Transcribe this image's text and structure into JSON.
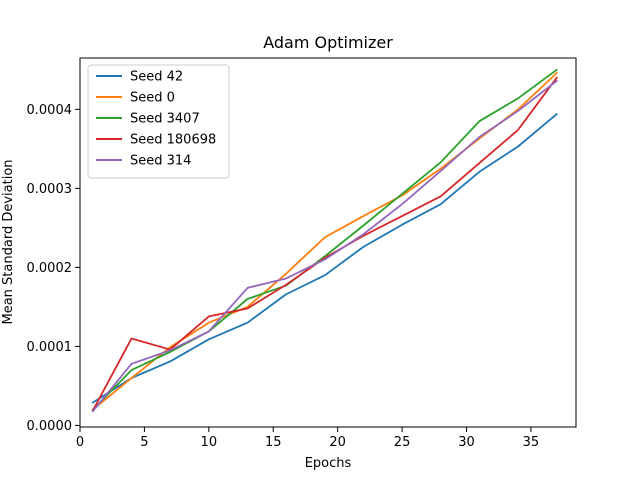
{
  "chart_data": {
    "type": "line",
    "title": "Adam Optimizer",
    "xlabel": "Epochs",
    "ylabel": "Mean Standard Deviation",
    "xlim": [
      0,
      38.5
    ],
    "ylim": [
      -2e-06,
      0.000465
    ],
    "x_ticks": [
      0,
      5,
      10,
      15,
      20,
      25,
      30,
      35
    ],
    "x_tick_labels": [
      "0",
      "5",
      "10",
      "15",
      "20",
      "25",
      "30",
      "35"
    ],
    "y_ticks": [
      0,
      0.0001,
      0.0002,
      0.0003,
      0.0004
    ],
    "y_tick_labels": [
      "0.0000",
      "0.0001",
      "0.0002",
      "0.0003",
      "0.0004"
    ],
    "grid": false,
    "legend_position": "upper-left",
    "x": [
      1,
      4,
      7,
      10,
      13,
      16,
      19,
      22,
      25,
      28,
      31,
      34,
      37
    ],
    "series": [
      {
        "name": "Seed 42",
        "color": "#1f77b4",
        "values": [
          2.9e-05,
          6e-05,
          8.1e-05,
          0.000109,
          0.00013,
          0.000166,
          0.00019,
          0.000226,
          0.000254,
          0.00028,
          0.000321,
          0.000353,
          0.000394
        ]
      },
      {
        "name": "Seed 0",
        "color": "#ff7f0e",
        "values": [
          2e-05,
          6e-05,
          9.9e-05,
          0.00013,
          0.00015,
          0.000192,
          0.000238,
          0.000265,
          0.000291,
          0.000325,
          0.000363,
          0.0004,
          0.000446
        ]
      },
      {
        "name": "Seed 3407",
        "color": "#2ca02c",
        "values": [
          2e-05,
          7e-05,
          9.3e-05,
          0.000119,
          0.00016,
          0.000177,
          0.000214,
          0.000253,
          0.000293,
          0.000333,
          0.000385,
          0.000414,
          0.00045
        ]
      },
      {
        "name": "Seed 180698",
        "color": "#d62728",
        "values": [
          1.9e-05,
          0.00011,
          9.6e-05,
          0.000138,
          0.000148,
          0.000178,
          0.000212,
          0.00024,
          0.000265,
          0.00029,
          0.000332,
          0.000374,
          0.00044
        ]
      },
      {
        "name": "Seed 314",
        "color": "#9467bd",
        "values": [
          1.8e-05,
          7.8e-05,
          9.5e-05,
          0.000119,
          0.000174,
          0.000186,
          0.00021,
          0.000242,
          0.00028,
          0.000322,
          0.000365,
          0.000398,
          0.000436
        ]
      }
    ]
  }
}
